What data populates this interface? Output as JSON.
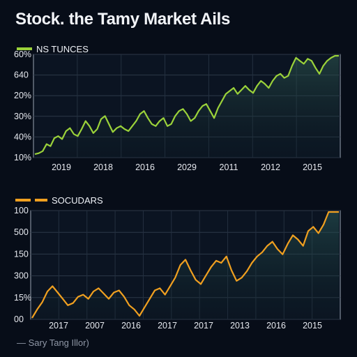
{
  "title": "Stock. the Tamy Market Ails",
  "footer": "— Sary Tang Illor)",
  "chart_data": [
    {
      "type": "line",
      "legend": "NS TUNCES",
      "color": "#9bd23a",
      "yticks": [
        "60%",
        "640",
        "20%",
        "30%",
        "40%",
        "10%"
      ],
      "xticks": [
        "2019",
        "2018",
        "2016",
        "2029",
        "2011",
        "2012",
        "2015"
      ],
      "grid": true,
      "series": [
        {
          "values": [
            0.02,
            0.03,
            0.05,
            0.12,
            0.1,
            0.18,
            0.2,
            0.17,
            0.25,
            0.28,
            0.22,
            0.2,
            0.27,
            0.35,
            0.3,
            0.23,
            0.27,
            0.37,
            0.4,
            0.32,
            0.24,
            0.28,
            0.3,
            0.27,
            0.25,
            0.3,
            0.35,
            0.42,
            0.45,
            0.38,
            0.32,
            0.3,
            0.35,
            0.38,
            0.3,
            0.32,
            0.4,
            0.45,
            0.47,
            0.42,
            0.35,
            0.38,
            0.45,
            0.5,
            0.52,
            0.45,
            0.38,
            0.48,
            0.55,
            0.62,
            0.65,
            0.68,
            0.62,
            0.66,
            0.7,
            0.66,
            0.63,
            0.7,
            0.75,
            0.72,
            0.68,
            0.75,
            0.8,
            0.82,
            0.78,
            0.8,
            0.9,
            0.98,
            0.95,
            0.92,
            0.97,
            0.95,
            0.88,
            0.82,
            0.9,
            0.95,
            0.98,
            1.0,
            1.0
          ]
        }
      ]
    },
    {
      "type": "line",
      "legend": "SOCUDARS",
      "color": "#f0a020",
      "yticks": [
        "100",
        "500",
        "150",
        "300",
        "15%",
        "00"
      ],
      "xticks": [
        "2017",
        "2007",
        "2016",
        "2017",
        "2017",
        "2013",
        "2016",
        "2015"
      ],
      "grid": true,
      "series": [
        {
          "values": [
            0.0,
            0.08,
            0.15,
            0.25,
            0.3,
            0.24,
            0.18,
            0.12,
            0.14,
            0.2,
            0.22,
            0.18,
            0.25,
            0.28,
            0.23,
            0.18,
            0.24,
            0.26,
            0.2,
            0.12,
            0.08,
            0.02,
            0.1,
            0.18,
            0.26,
            0.28,
            0.22,
            0.3,
            0.38,
            0.5,
            0.55,
            0.45,
            0.36,
            0.32,
            0.4,
            0.48,
            0.54,
            0.52,
            0.58,
            0.45,
            0.35,
            0.38,
            0.44,
            0.52,
            0.58,
            0.62,
            0.68,
            0.72,
            0.65,
            0.6,
            0.7,
            0.78,
            0.74,
            0.68,
            0.82,
            0.86,
            0.8,
            0.88,
            1.0,
            1.0,
            1.0
          ]
        }
      ]
    }
  ]
}
